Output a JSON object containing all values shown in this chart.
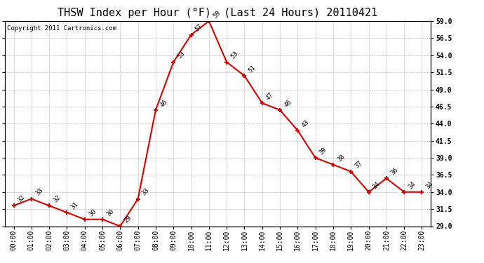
{
  "title": "THSW Index per Hour (°F)  (Last 24 Hours) 20110421",
  "copyright": "Copyright 2011 Cartronics.com",
  "hours": [
    "00:00",
    "01:00",
    "02:00",
    "03:00",
    "04:00",
    "05:00",
    "06:00",
    "07:00",
    "08:00",
    "09:00",
    "10:00",
    "11:00",
    "12:00",
    "13:00",
    "14:00",
    "15:00",
    "16:00",
    "17:00",
    "18:00",
    "19:00",
    "20:00",
    "21:00",
    "22:00",
    "23:00"
  ],
  "values": [
    32,
    33,
    32,
    31,
    30,
    30,
    29,
    33,
    46,
    53,
    57,
    59,
    53,
    51,
    47,
    46,
    43,
    39,
    38,
    37,
    34,
    36,
    34,
    34
  ],
  "line_color": "#dd0000",
  "marker_color": "#dd0000",
  "bg_color": "#ffffff",
  "grid_color": "#bbbbbb",
  "ylim_min": 29.0,
  "ylim_max": 59.0,
  "yticks": [
    29.0,
    31.5,
    34.0,
    36.5,
    39.0,
    41.5,
    44.0,
    46.5,
    49.0,
    51.5,
    54.0,
    56.5,
    59.0
  ],
  "title_fontsize": 11,
  "label_fontsize": 7,
  "annotation_fontsize": 6.5,
  "copyright_fontsize": 6.5
}
